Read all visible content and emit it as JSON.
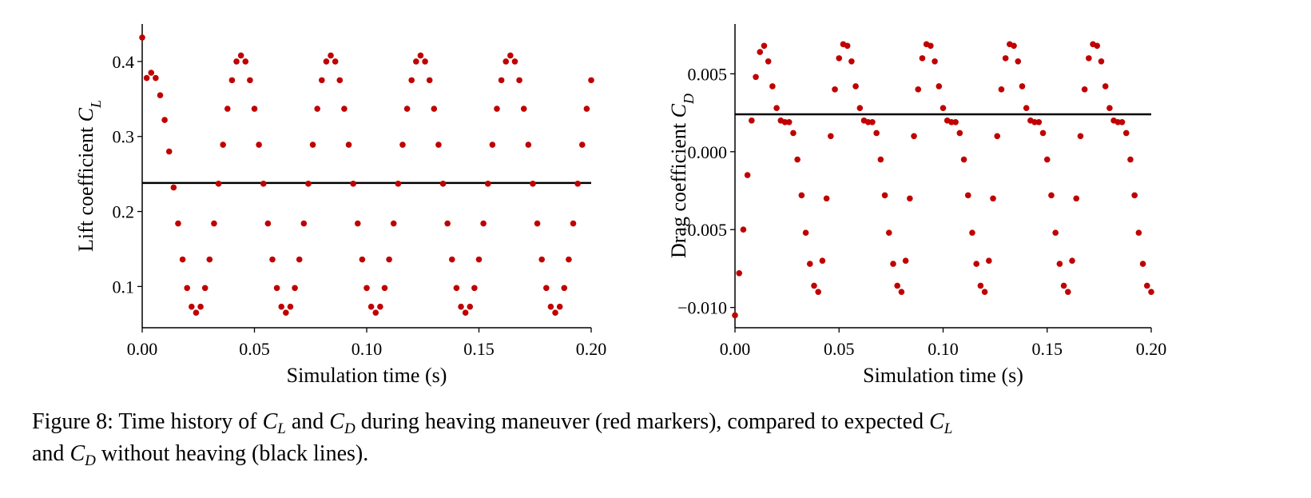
{
  "chart_data": [
    {
      "type": "scatter",
      "ylabel": "Lift coefficient ",
      "ylabel_symbol": "C",
      "ylabel_sub": "L",
      "xlabel": "Simulation time (s)",
      "color": "#c00000",
      "reference": 0.238,
      "reference_color": "#000000",
      "xlim": [
        0,
        0.2
      ],
      "ylim": [
        0.045,
        0.45
      ],
      "xticks": [
        {
          "value": 0,
          "label": "0.00"
        },
        {
          "value": 0.05,
          "label": "0.05"
        },
        {
          "value": 0.1,
          "label": "0.10"
        },
        {
          "value": 0.15,
          "label": "0.15"
        },
        {
          "value": 0.2,
          "label": "0.20"
        }
      ],
      "yticks": [
        0.1,
        0.2,
        0.3,
        0.4
      ],
      "x": [
        0,
        0.002,
        0.004,
        0.006,
        0.008,
        0.01,
        0.012,
        0.014,
        0.016,
        0.018,
        0.02,
        0.022,
        0.024,
        0.026,
        0.028,
        0.03,
        0.032,
        0.034,
        0.036,
        0.038,
        0.04,
        0.042,
        0.044,
        0.046,
        0.048,
        0.05,
        0.052,
        0.054,
        0.056,
        0.058,
        0.06,
        0.062,
        0.064,
        0.066,
        0.068,
        0.07,
        0.072,
        0.074,
        0.076,
        0.078,
        0.08,
        0.082,
        0.084,
        0.086,
        0.088,
        0.09,
        0.092,
        0.094,
        0.096,
        0.098,
        0.1,
        0.102,
        0.104,
        0.106,
        0.108,
        0.11,
        0.112,
        0.114,
        0.116,
        0.118,
        0.12,
        0.122,
        0.124,
        0.126,
        0.128,
        0.13,
        0.132,
        0.134,
        0.136,
        0.138,
        0.14,
        0.142,
        0.144,
        0.146,
        0.148,
        0.15,
        0.152,
        0.154,
        0.156,
        0.158,
        0.16,
        0.162,
        0.164,
        0.166,
        0.168,
        0.17,
        0.172,
        0.174,
        0.176,
        0.178,
        0.18,
        0.182,
        0.184,
        0.186,
        0.188,
        0.19,
        0.192,
        0.194,
        0.196,
        0.198,
        0.2
      ],
      "values": [
        0.432,
        0.378,
        0.385,
        0.378,
        0.355,
        0.322,
        0.28,
        0.232,
        0.184,
        0.136,
        0.098,
        0.073,
        0.065,
        0.073,
        0.098,
        0.136,
        0.184,
        0.237,
        0.289,
        0.337,
        0.375,
        0.4,
        0.408,
        0.4,
        0.375,
        0.337,
        0.289,
        0.237,
        0.184,
        0.136,
        0.098,
        0.073,
        0.065,
        0.073,
        0.098,
        0.136,
        0.184,
        0.237,
        0.289,
        0.337,
        0.375,
        0.4,
        0.408,
        0.4,
        0.375,
        0.337,
        0.289,
        0.237,
        0.184,
        0.136,
        0.098,
        0.073,
        0.065,
        0.073,
        0.098,
        0.136,
        0.184,
        0.237,
        0.289,
        0.337,
        0.375,
        0.4,
        0.408,
        0.4,
        0.375,
        0.337,
        0.289,
        0.237,
        0.184,
        0.136,
        0.098,
        0.073,
        0.065,
        0.073,
        0.098,
        0.136,
        0.184,
        0.237,
        0.289,
        0.337,
        0.375,
        0.4,
        0.408,
        0.4,
        0.375,
        0.337,
        0.289,
        0.237,
        0.184,
        0.136,
        0.098,
        0.073,
        0.065,
        0.073,
        0.098,
        0.136,
        0.184,
        0.237,
        0.289,
        0.337,
        0.375
      ]
    },
    {
      "type": "scatter",
      "ylabel": "Drag coefficient ",
      "ylabel_symbol": "C",
      "ylabel_sub": "D",
      "xlabel": "Simulation time (s)",
      "color": "#c00000",
      "reference": 0.0024,
      "reference_color": "#000000",
      "xlim": [
        0,
        0.2
      ],
      "ylim": [
        -0.0113,
        0.0082
      ],
      "xticks": [
        {
          "value": 0,
          "label": "0.00"
        },
        {
          "value": 0.05,
          "label": "0.05"
        },
        {
          "value": 0.1,
          "label": "0.10"
        },
        {
          "value": 0.15,
          "label": "0.15"
        },
        {
          "value": 0.2,
          "label": "0.20"
        }
      ],
      "yticks": [
        {
          "value": -0.01,
          "label": "−0.010"
        },
        {
          "value": -0.005,
          "label": "−0.005"
        },
        {
          "value": 0,
          "label": "0.000"
        },
        {
          "value": 0.005,
          "label": "0.005"
        }
      ],
      "x": [
        0,
        0.002,
        0.004,
        0.006,
        0.008,
        0.01,
        0.012,
        0.014,
        0.016,
        0.018,
        0.02,
        0.022,
        0.024,
        0.026,
        0.028,
        0.03,
        0.032,
        0.034,
        0.036,
        0.038,
        0.04,
        0.042,
        0.044,
        0.046,
        0.048,
        0.05,
        0.052,
        0.054,
        0.056,
        0.058,
        0.06,
        0.062,
        0.064,
        0.066,
        0.068,
        0.07,
        0.072,
        0.074,
        0.076,
        0.078,
        0.08,
        0.082,
        0.084,
        0.086,
        0.088,
        0.09,
        0.092,
        0.094,
        0.096,
        0.098,
        0.1,
        0.102,
        0.104,
        0.106,
        0.108,
        0.11,
        0.112,
        0.114,
        0.116,
        0.118,
        0.12,
        0.122,
        0.124,
        0.126,
        0.128,
        0.13,
        0.132,
        0.134,
        0.136,
        0.138,
        0.14,
        0.142,
        0.144,
        0.146,
        0.148,
        0.15,
        0.152,
        0.154,
        0.156,
        0.158,
        0.16,
        0.162,
        0.164,
        0.166,
        0.168,
        0.17,
        0.172,
        0.174,
        0.176,
        0.178,
        0.18,
        0.182,
        0.184,
        0.186,
        0.188,
        0.19,
        0.192,
        0.194,
        0.196,
        0.198,
        0.2
      ],
      "values": [
        -0.0105,
        -0.0078,
        -0.005,
        -0.0015,
        0.002,
        0.0048,
        0.0064,
        0.0068,
        0.0058,
        0.0042,
        0.0028,
        0.002,
        0.0019,
        0.0019,
        0.0012,
        -0.0005,
        -0.0028,
        -0.0052,
        -0.0072,
        -0.0086,
        -0.009,
        -0.007,
        -0.003,
        0.001,
        0.004,
        0.006,
        0.0069,
        0.0068,
        0.0058,
        0.0042,
        0.0028,
        0.002,
        0.0019,
        0.0019,
        0.0012,
        -0.0005,
        -0.0028,
        -0.0052,
        -0.0072,
        -0.0086,
        -0.009,
        -0.007,
        -0.003,
        0.001,
        0.004,
        0.006,
        0.0069,
        0.0068,
        0.0058,
        0.0042,
        0.0028,
        0.002,
        0.0019,
        0.0019,
        0.0012,
        -0.0005,
        -0.0028,
        -0.0052,
        -0.0072,
        -0.0086,
        -0.009,
        -0.007,
        -0.003,
        0.001,
        0.004,
        0.006,
        0.0069,
        0.0068,
        0.0058,
        0.0042,
        0.0028,
        0.002,
        0.0019,
        0.0019,
        0.0012,
        -0.0005,
        -0.0028,
        -0.0052,
        -0.0072,
        -0.0086,
        -0.009,
        -0.007,
        -0.003,
        0.001,
        0.004,
        0.006,
        0.0069,
        0.0068,
        0.0058,
        0.0042,
        0.0028,
        0.002,
        0.0019,
        0.0019,
        0.0012,
        -0.0005,
        -0.0028,
        -0.0052,
        -0.0072,
        -0.0086,
        -0.009
      ]
    }
  ],
  "caption": [
    "Figure 8: Time history of ",
    "C",
    "L",
    " and ",
    "C",
    "D",
    " during heaving maneuver (red markers), compared to expected ",
    "C",
    "L",
    "and ",
    "C",
    "D",
    " without heaving (black lines)."
  ]
}
